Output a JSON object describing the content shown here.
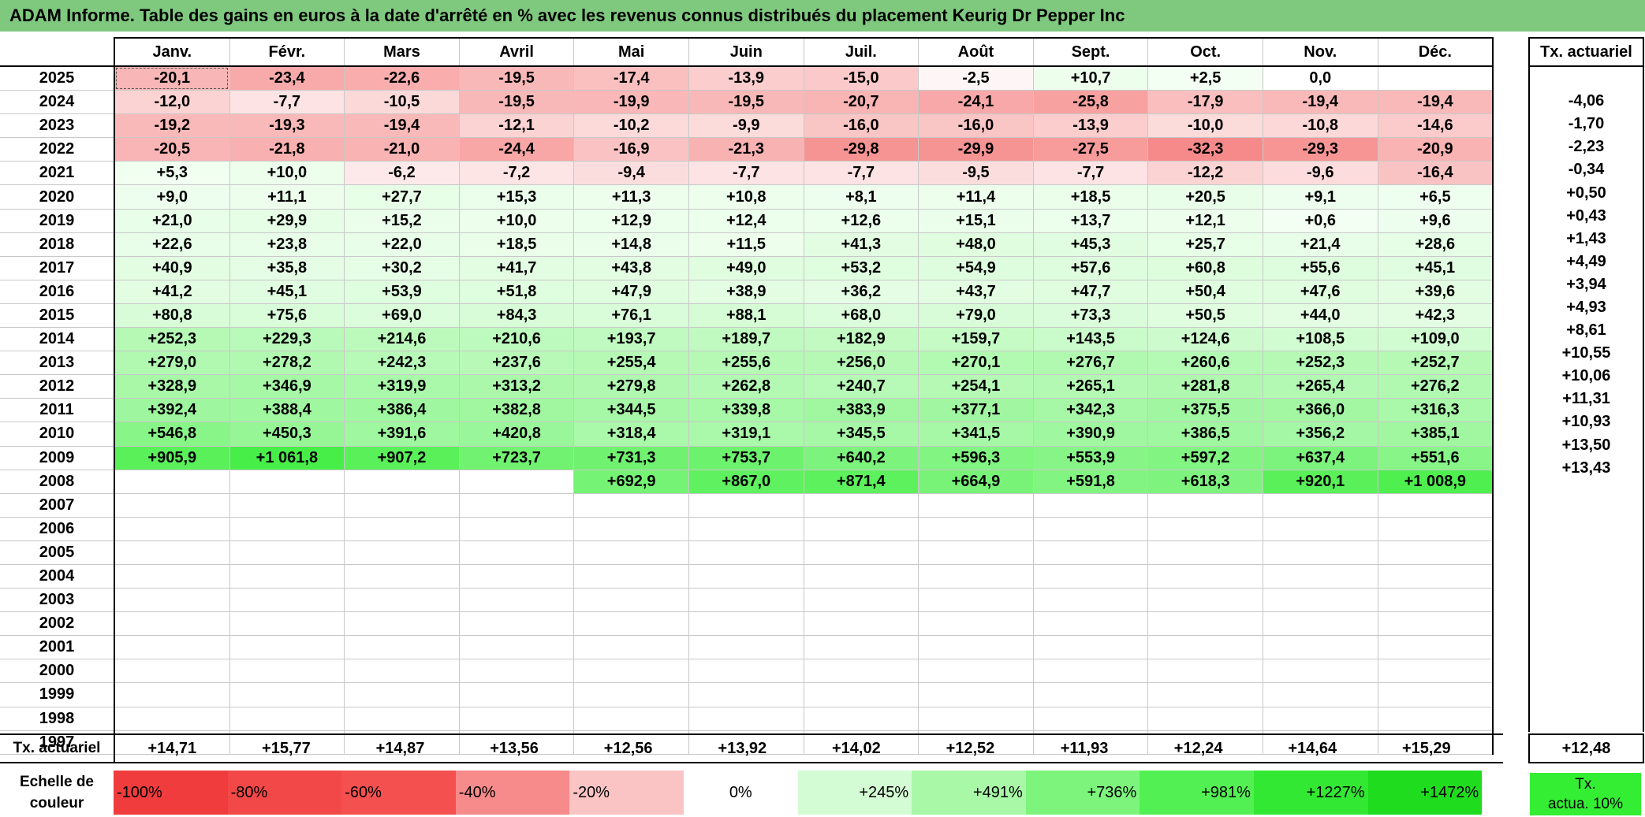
{
  "title": "ADAM Informe. Table des gains en euros à la date d'arrêté en % avec les revenus connus distribués du placement Keurig Dr Pepper Inc",
  "months": [
    "Janv.",
    "Févr.",
    "Mars",
    "Avril",
    "Mai",
    "Juin",
    "Juil.",
    "Août",
    "Sept.",
    "Oct.",
    "Nov.",
    "Déc."
  ],
  "actuarial_header": "Tx. actuariel",
  "rows": [
    {
      "year": "2025",
      "values": [
        "-20,1",
        "-23,4",
        "-22,6",
        "-19,5",
        "-17,4",
        "-13,9",
        "-15,0",
        "-2,5",
        "+10,7",
        "+2,5",
        "0,0",
        ""
      ],
      "actuarial": ""
    },
    {
      "year": "2024",
      "values": [
        "-12,0",
        "-7,7",
        "-10,5",
        "-19,5",
        "-19,9",
        "-19,5",
        "-20,7",
        "-24,1",
        "-25,8",
        "-17,9",
        "-19,4",
        "-19,4"
      ],
      "actuarial": "-4,06"
    },
    {
      "year": "2023",
      "values": [
        "-19,2",
        "-19,3",
        "-19,4",
        "-12,1",
        "-10,2",
        "-9,9",
        "-16,0",
        "-16,0",
        "-13,9",
        "-10,0",
        "-10,8",
        "-14,6"
      ],
      "actuarial": "-1,70"
    },
    {
      "year": "2022",
      "values": [
        "-20,5",
        "-21,8",
        "-21,0",
        "-24,4",
        "-16,9",
        "-21,3",
        "-29,8",
        "-29,9",
        "-27,5",
        "-32,3",
        "-29,3",
        "-20,9"
      ],
      "actuarial": "-2,23"
    },
    {
      "year": "2021",
      "values": [
        "+5,3",
        "+10,0",
        "-6,2",
        "-7,2",
        "-9,4",
        "-7,7",
        "-7,7",
        "-9,5",
        "-7,7",
        "-12,2",
        "-9,6",
        "-16,4"
      ],
      "actuarial": "-0,34"
    },
    {
      "year": "2020",
      "values": [
        "+9,0",
        "+11,1",
        "+27,7",
        "+15,3",
        "+11,3",
        "+10,8",
        "+8,1",
        "+11,4",
        "+18,5",
        "+20,5",
        "+9,1",
        "+6,5"
      ],
      "actuarial": "+0,50"
    },
    {
      "year": "2019",
      "values": [
        "+21,0",
        "+29,9",
        "+15,2",
        "+10,0",
        "+12,9",
        "+12,4",
        "+12,6",
        "+15,1",
        "+13,7",
        "+12,1",
        "+0,6",
        "+9,6"
      ],
      "actuarial": "+0,43"
    },
    {
      "year": "2018",
      "values": [
        "+22,6",
        "+23,8",
        "+22,0",
        "+18,5",
        "+14,8",
        "+11,5",
        "+41,3",
        "+48,0",
        "+45,3",
        "+25,7",
        "+21,4",
        "+28,6"
      ],
      "actuarial": "+1,43"
    },
    {
      "year": "2017",
      "values": [
        "+40,9",
        "+35,8",
        "+30,2",
        "+41,7",
        "+43,8",
        "+49,0",
        "+53,2",
        "+54,9",
        "+57,6",
        "+60,8",
        "+55,6",
        "+45,1"
      ],
      "actuarial": "+4,49"
    },
    {
      "year": "2016",
      "values": [
        "+41,2",
        "+45,1",
        "+53,9",
        "+51,8",
        "+47,9",
        "+38,9",
        "+36,2",
        "+43,7",
        "+47,7",
        "+50,4",
        "+47,6",
        "+39,6"
      ],
      "actuarial": "+3,94"
    },
    {
      "year": "2015",
      "values": [
        "+80,8",
        "+75,6",
        "+69,0",
        "+84,3",
        "+76,1",
        "+88,1",
        "+68,0",
        "+79,0",
        "+73,3",
        "+50,5",
        "+44,0",
        "+42,3"
      ],
      "actuarial": "+4,93"
    },
    {
      "year": "2014",
      "values": [
        "+252,3",
        "+229,3",
        "+214,6",
        "+210,6",
        "+193,7",
        "+189,7",
        "+182,9",
        "+159,7",
        "+143,5",
        "+124,6",
        "+108,5",
        "+109,0"
      ],
      "actuarial": "+8,61"
    },
    {
      "year": "2013",
      "values": [
        "+279,0",
        "+278,2",
        "+242,3",
        "+237,6",
        "+255,4",
        "+255,6",
        "+256,0",
        "+270,1",
        "+276,7",
        "+260,6",
        "+252,3",
        "+252,7"
      ],
      "actuarial": "+10,55"
    },
    {
      "year": "2012",
      "values": [
        "+328,9",
        "+346,9",
        "+319,9",
        "+313,2",
        "+279,8",
        "+262,8",
        "+240,7",
        "+254,1",
        "+265,1",
        "+281,8",
        "+265,4",
        "+276,2"
      ],
      "actuarial": "+10,06"
    },
    {
      "year": "2011",
      "values": [
        "+392,4",
        "+388,4",
        "+386,4",
        "+382,8",
        "+344,5",
        "+339,8",
        "+383,9",
        "+377,1",
        "+342,3",
        "+375,5",
        "+366,0",
        "+316,3"
      ],
      "actuarial": "+11,31"
    },
    {
      "year": "2010",
      "values": [
        "+546,8",
        "+450,3",
        "+391,6",
        "+420,8",
        "+318,4",
        "+319,1",
        "+345,5",
        "+341,5",
        "+390,9",
        "+386,5",
        "+356,2",
        "+385,1"
      ],
      "actuarial": "+10,93"
    },
    {
      "year": "2009",
      "values": [
        "+905,9",
        "+1 061,8",
        "+907,2",
        "+723,7",
        "+731,3",
        "+753,7",
        "+640,2",
        "+596,3",
        "+553,9",
        "+597,2",
        "+637,4",
        "+551,6"
      ],
      "actuarial": "+13,50"
    },
    {
      "year": "2008",
      "values": [
        "",
        "",
        "",
        "",
        "+692,9",
        "+867,0",
        "+871,4",
        "+664,9",
        "+591,8",
        "+618,3",
        "+920,1",
        "+1 008,9"
      ],
      "actuarial": "+13,43"
    },
    {
      "year": "2007",
      "values": [
        "",
        "",
        "",
        "",
        "",
        "",
        "",
        "",
        "",
        "",
        "",
        ""
      ],
      "actuarial": ""
    },
    {
      "year": "2006",
      "values": [
        "",
        "",
        "",
        "",
        "",
        "",
        "",
        "",
        "",
        "",
        "",
        ""
      ],
      "actuarial": ""
    },
    {
      "year": "2005",
      "values": [
        "",
        "",
        "",
        "",
        "",
        "",
        "",
        "",
        "",
        "",
        "",
        ""
      ],
      "actuarial": ""
    },
    {
      "year": "2004",
      "values": [
        "",
        "",
        "",
        "",
        "",
        "",
        "",
        "",
        "",
        "",
        "",
        ""
      ],
      "actuarial": ""
    },
    {
      "year": "2003",
      "values": [
        "",
        "",
        "",
        "",
        "",
        "",
        "",
        "",
        "",
        "",
        "",
        ""
      ],
      "actuarial": ""
    },
    {
      "year": "2002",
      "values": [
        "",
        "",
        "",
        "",
        "",
        "",
        "",
        "",
        "",
        "",
        "",
        ""
      ],
      "actuarial": ""
    },
    {
      "year": "2001",
      "values": [
        "",
        "",
        "",
        "",
        "",
        "",
        "",
        "",
        "",
        "",
        "",
        ""
      ],
      "actuarial": ""
    },
    {
      "year": "2000",
      "values": [
        "",
        "",
        "",
        "",
        "",
        "",
        "",
        "",
        "",
        "",
        "",
        ""
      ],
      "actuarial": ""
    },
    {
      "year": "1999",
      "values": [
        "",
        "",
        "",
        "",
        "",
        "",
        "",
        "",
        "",
        "",
        "",
        ""
      ],
      "actuarial": ""
    },
    {
      "year": "1998",
      "values": [
        "",
        "",
        "",
        "",
        "",
        "",
        "",
        "",
        "",
        "",
        "",
        ""
      ],
      "actuarial": ""
    },
    {
      "year": "1997",
      "values": [
        "",
        "",
        "",
        "",
        "",
        "",
        "",
        "",
        "",
        "",
        "",
        ""
      ],
      "actuarial": ""
    }
  ],
  "bottom_row": {
    "label": "Tx. actuariel",
    "values": [
      "+14,71",
      "+15,77",
      "+14,87",
      "+13,56",
      "+12,56",
      "+13,92",
      "+14,02",
      "+12,52",
      "+11,93",
      "+12,24",
      "+14,64",
      "+15,29"
    ],
    "actuarial": "+12,48"
  },
  "legend": {
    "label_line1": "Echelle de",
    "label_line2": "couleur",
    "swatches": [
      {
        "label": "-100%",
        "color": "#f03c3c"
      },
      {
        "label": "-80%",
        "color": "#f24848"
      },
      {
        "label": "-60%",
        "color": "#f45050"
      },
      {
        "label": "-40%",
        "color": "#f78a8a"
      },
      {
        "label": "-20%",
        "color": "#fbc4c4"
      },
      {
        "label": "0%",
        "color": "#ffffff"
      },
      {
        "label": "+245%",
        "color": "#d4fcd4"
      },
      {
        "label": "+491%",
        "color": "#a8f8a8"
      },
      {
        "label": "+736%",
        "color": "#7df57d"
      },
      {
        "label": "+981%",
        "color": "#52f052"
      },
      {
        "label": "+1227%",
        "color": "#33e833"
      },
      {
        "label": "+1472%",
        "color": "#1fdc1f"
      }
    ],
    "actuarial_line1": "Tx.",
    "actuarial_line2": "actua. 10%",
    "actuarial_color": "#33ee33"
  }
}
